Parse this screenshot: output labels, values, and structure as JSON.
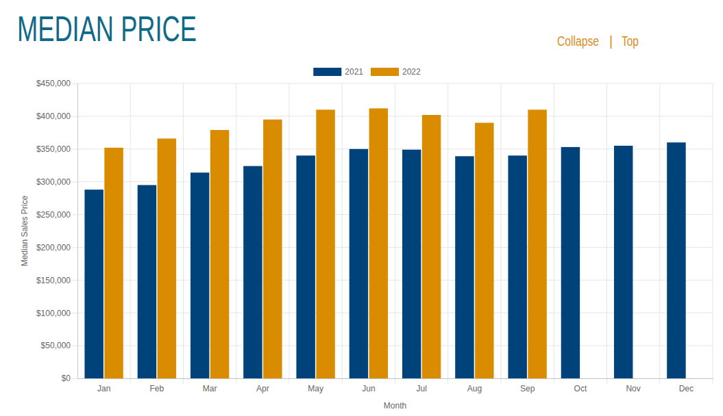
{
  "header": {
    "links": [
      "Collapse",
      "Top"
    ],
    "separator": "|"
  },
  "chart_data": {
    "type": "bar",
    "title": "MEDIAN PRICE",
    "x_label": "Month",
    "y_label": "Median Sales Price",
    "categories": [
      "Jan",
      "Feb",
      "Mar",
      "Apr",
      "May",
      "Jun",
      "Jul",
      "Aug",
      "Sep",
      "Oct",
      "Nov",
      "Dec"
    ],
    "series": [
      {
        "name": "2021",
        "color": "#00427a",
        "values": [
          288000,
          295000,
          314000,
          324000,
          340000,
          350000,
          349000,
          339000,
          340000,
          353000,
          355000,
          360000
        ]
      },
      {
        "name": "2022",
        "color": "#d98c00",
        "values": [
          352000,
          366000,
          379000,
          395000,
          410000,
          412000,
          402000,
          390000,
          410000,
          null,
          null,
          null
        ]
      }
    ],
    "ylim": [
      0,
      450000
    ],
    "yticks": [
      {
        "value": 0,
        "label": "$0"
      },
      {
        "value": 50000,
        "label": "$50,000"
      },
      {
        "value": 100000,
        "label": "$100,000"
      },
      {
        "value": 150000,
        "label": "$150,000"
      },
      {
        "value": 200000,
        "label": "$200,000"
      },
      {
        "value": 250000,
        "label": "$250,000"
      },
      {
        "value": 300000,
        "label": "$300,000"
      },
      {
        "value": 350000,
        "label": "$350,000"
      },
      {
        "value": 400000,
        "label": "$400,000"
      },
      {
        "value": 450000,
        "label": "$450,000"
      }
    ],
    "grid": true,
    "legend": "top"
  }
}
